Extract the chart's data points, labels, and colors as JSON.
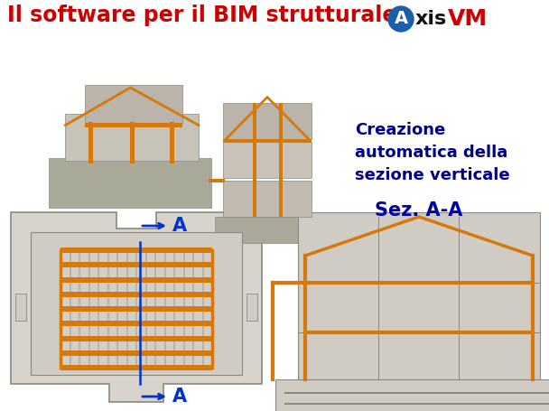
{
  "title_text": "Il software per il BIM strutturale",
  "title_color": "#cc0000",
  "title_fontsize": 17,
  "bg_color": "#ffffff",
  "label_a_color": "#0033cc",
  "section_label_color": "#0000aa",
  "section_title": "Sez. A-A",
  "creazione_text": "Creazione\nautomatica della\nsezione verticale",
  "creazione_color": "#00008b",
  "creazione_fontsize": 13,
  "orange_color": "#d4790a",
  "gray_wall": "#c8c3b8",
  "light_gray": "#d0ccc4",
  "dark_gray": "#8a8880",
  "plan_bg": "#d8d4cc",
  "section_bg": "#d8d4cc",
  "grid_rib_color": "#c0bab0",
  "logo_blue": "#1a5fa8",
  "logo_vm_red": "#cc0000"
}
